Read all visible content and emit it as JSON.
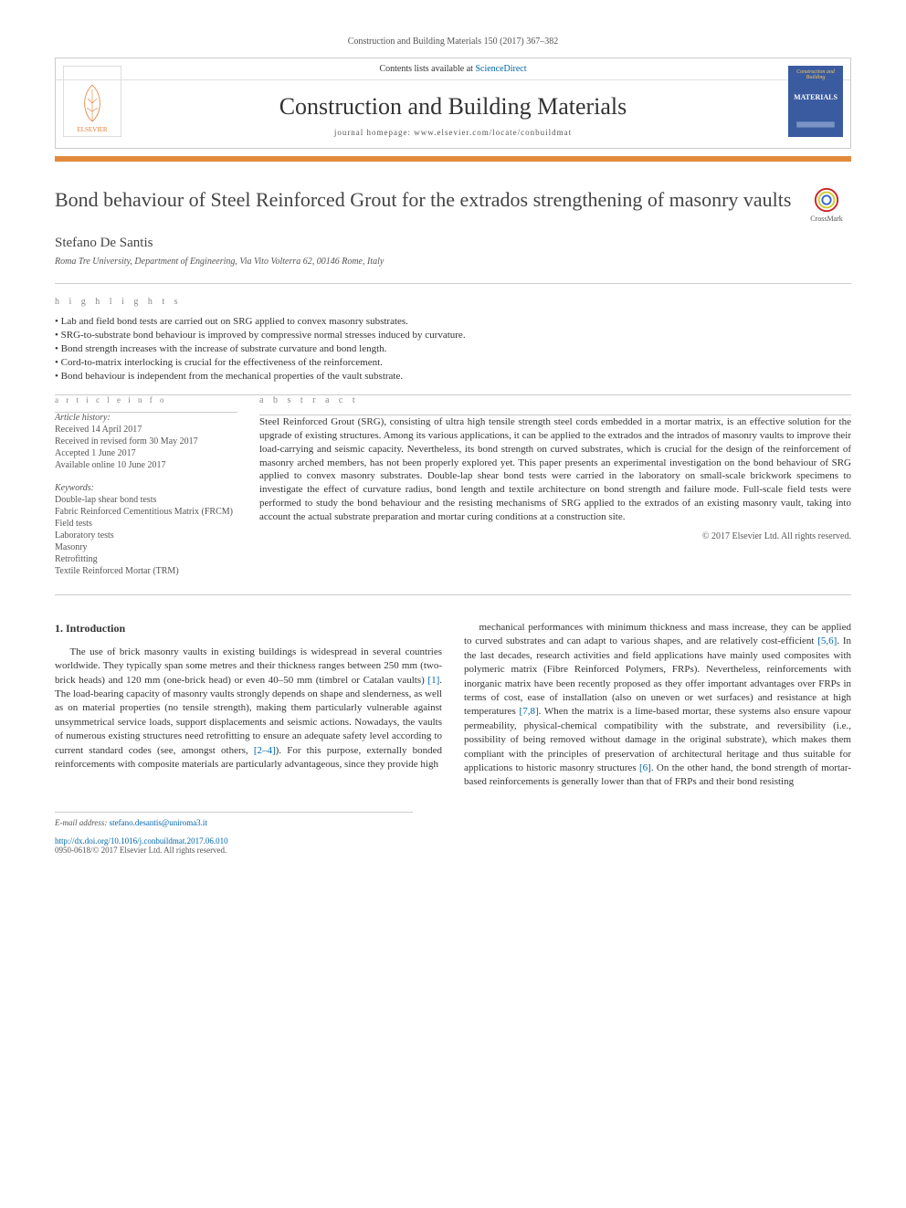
{
  "journal_ref": "Construction and Building Materials 150 (2017) 367–382",
  "header": {
    "contents_prefix": "Contents lists available at ",
    "contents_link": "ScienceDirect",
    "journal_title": "Construction and Building Materials",
    "homepage_prefix": "journal homepage: ",
    "homepage_url": "www.elsevier.com/locate/conbuildmat",
    "elsevier_label": "ELSEVIER",
    "cover_top": "Construction and Building",
    "cover_mat": "MATERIALS"
  },
  "article": {
    "title": "Bond behaviour of Steel Reinforced Grout for the extrados strengthening of masonry vaults",
    "crossmark_label": "CrossMark",
    "author": "Stefano De Santis",
    "affiliation": "Roma Tre University, Department of Engineering, Via Vito Volterra 62, 00146 Rome, Italy"
  },
  "highlights": {
    "label": "h i g h l i g h t s",
    "items": [
      "Lab and field bond tests are carried out on SRG applied to convex masonry substrates.",
      "SRG-to-substrate bond behaviour is improved by compressive normal stresses induced by curvature.",
      "Bond strength increases with the increase of substrate curvature and bond length.",
      "Cord-to-matrix interlocking is crucial for the effectiveness of the reinforcement.",
      "Bond behaviour is independent from the mechanical properties of the vault substrate."
    ]
  },
  "info": {
    "label": "a r t i c l e   i n f o",
    "history_label": "Article history:",
    "received": "Received 14 April 2017",
    "revised": "Received in revised form 30 May 2017",
    "accepted": "Accepted 1 June 2017",
    "online": "Available online 10 June 2017",
    "keywords_label": "Keywords:",
    "keywords": [
      "Double-lap shear bond tests",
      "Fabric Reinforced Cementitious Matrix (FRCM)",
      "Field tests",
      "Laboratory tests",
      "Masonry",
      "Retrofitting",
      "Textile Reinforced Mortar (TRM)"
    ]
  },
  "abstract": {
    "label": "a b s t r a c t",
    "text": "Steel Reinforced Grout (SRG), consisting of ultra high tensile strength steel cords embedded in a mortar matrix, is an effective solution for the upgrade of existing structures. Among its various applications, it can be applied to the extrados and the intrados of masonry vaults to improve their load-carrying and seismic capacity. Nevertheless, its bond strength on curved substrates, which is crucial for the design of the reinforcement of masonry arched members, has not been properly explored yet. This paper presents an experimental investigation on the bond behaviour of SRG applied to convex masonry substrates. Double-lap shear bond tests were carried in the laboratory on small-scale brickwork specimens to investigate the effect of curvature radius, bond length and textile architecture on bond strength and failure mode. Full-scale field tests were performed to study the bond behaviour and the resisting mechanisms of SRG applied to the extrados of an existing masonry vault, taking into account the actual substrate preparation and mortar curing conditions at a construction site.",
    "copyright": "© 2017 Elsevier Ltd. All rights reserved."
  },
  "body": {
    "section_heading": "1. Introduction",
    "col1": "The use of brick masonry vaults in existing buildings is widespread in several countries worldwide. They typically span some metres and their thickness ranges between 250 mm (two-brick heads) and 120 mm (one-brick head) or even 40–50 mm (timbrel or Catalan vaults) [1]. The load-bearing capacity of masonry vaults strongly depends on shape and slenderness, as well as on material properties (no tensile strength), making them particularly vulnerable against unsymmetrical service loads, support displacements and seismic actions. Nowadays, the vaults of numerous existing structures need retrofitting to ensure an adequate safety level according to current standard codes (see, amongst others, [2–4]). For this purpose, externally bonded reinforcements with composite materials are particularly advantageous, since they provide high",
    "col2": "mechanical performances with minimum thickness and mass increase, they can be applied to curved substrates and can adapt to various shapes, and are relatively cost-efficient [5,6]. In the last decades, research activities and field applications have mainly used composites with polymeric matrix (Fibre Reinforced Polymers, FRPs). Nevertheless, reinforcements with inorganic matrix have been recently proposed as they offer important advantages over FRPs in terms of cost, ease of installation (also on uneven or wet surfaces) and resistance at high temperatures [7,8]. When the matrix is a lime-based mortar, these systems also ensure vapour permeability, physical-chemical compatibility with the substrate, and reversibility (i.e., possibility of being removed without damage in the original substrate), which makes them compliant with the principles of preservation of architectural heritage and thus suitable for applications to historic masonry structures [6]. On the other hand, the bond strength of mortar-based reinforcements is generally lower than that of FRPs and their bond resisting",
    "ref1": "[1]",
    "ref2_4": "[2–4]",
    "ref5_6": "[5,6]",
    "ref7_8": "[7,8]",
    "ref6": "[6]"
  },
  "footnotes": {
    "email_label": "E-mail address: ",
    "email": "stefano.desantis@uniroma3.it",
    "doi": "http://dx.doi.org/10.1016/j.conbuildmat.2017.06.010",
    "issn_line": "0950-0618/© 2017 Elsevier Ltd. All rights reserved."
  },
  "colors": {
    "accent_orange": "#e18a3b",
    "link_blue": "#0066aa",
    "cover_blue": "#3a5ba0",
    "text_gray": "#555555",
    "rule_gray": "#cccccc"
  }
}
